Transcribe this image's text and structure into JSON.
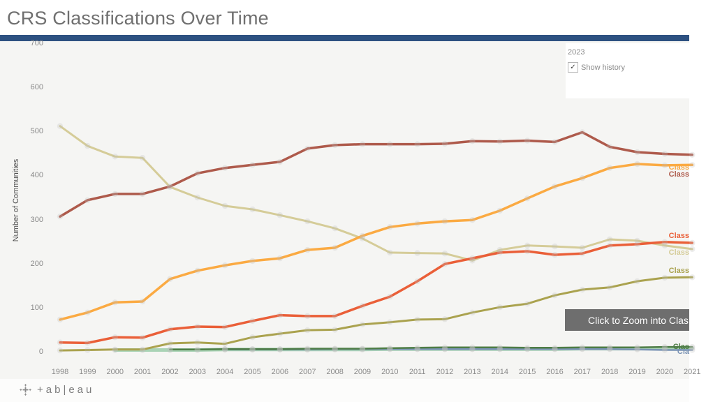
{
  "header": {
    "title": "CRS Classifications Over Time"
  },
  "filter_panel": {
    "year_value": "2023",
    "checkbox_checked": true,
    "checkbox_label": "Show history"
  },
  "zoom_button": {
    "label": "Click to Zoom into Clas"
  },
  "footer": {
    "wordmark": "+ab|eau"
  },
  "colors": {
    "divider_blue": "#2d5181",
    "chart_bg": "#f5f5f3",
    "button_gray": "#6e6e6e",
    "title_gray": "#6f6f6f"
  },
  "chart_data": {
    "type": "line",
    "title": "CRS Classifications Over Time",
    "xlabel": "",
    "ylabel": "Number of Communities",
    "x": [
      1998,
      1999,
      2000,
      2001,
      2002,
      2003,
      2004,
      2005,
      2006,
      2007,
      2008,
      2009,
      2010,
      2011,
      2012,
      2013,
      2014,
      2015,
      2016,
      2017,
      2018,
      2019,
      2020,
      2021
    ],
    "y_ticks": [
      0,
      100,
      200,
      300,
      400,
      500,
      600,
      700
    ],
    "ylim": [
      0,
      700
    ],
    "grid": false,
    "legend_position": "right-edge-labels",
    "series": [
      {
        "id": "teal-light",
        "name": "(unlabeled pale teal class)",
        "end_label": "",
        "label_top": null,
        "color": "#a9d3b5",
        "width": 5,
        "values": [
          null,
          null,
          4,
          4,
          4,
          4,
          5,
          5,
          5,
          5,
          5,
          5,
          6,
          6,
          6,
          6,
          6,
          6,
          6,
          7,
          7,
          7,
          8,
          8
        ]
      },
      {
        "id": "khaki",
        "name": "Class (khaki)",
        "end_label": "Class",
        "label_top": 297,
        "color": "#d5cc98",
        "width": 3,
        "values": [
          512,
          467,
          443,
          440,
          374,
          350,
          331,
          323,
          310,
          296,
          280,
          257,
          225,
          224,
          223,
          207,
          231,
          241,
          239,
          236,
          255,
          252,
          241,
          233
        ]
      },
      {
        "id": "dark-red",
        "name": "Class (dark red)",
        "end_label": "Class",
        "label_top": 185,
        "color": "#ae5a4b",
        "width": 3.5,
        "values": [
          307,
          344,
          358,
          358,
          375,
          405,
          417,
          424,
          431,
          461,
          469,
          471,
          471,
          471,
          472,
          478,
          477,
          479,
          476,
          498,
          465,
          453,
          449,
          447
        ]
      },
      {
        "id": "orange",
        "name": "Class (orange)",
        "end_label": "Class",
        "label_top": 175,
        "color": "#fbaa42",
        "width": 3.5,
        "values": [
          73,
          89,
          112,
          114,
          165,
          184,
          196,
          206,
          212,
          231,
          236,
          263,
          283,
          291,
          296,
          299,
          320,
          348,
          375,
          394,
          417,
          426,
          423,
          424
        ]
      },
      {
        "id": "olive",
        "name": "Class (olive)",
        "end_label": "Class",
        "label_top": 323,
        "color": "#aaa24e",
        "width": 3,
        "values": [
          3,
          4,
          5,
          5,
          19,
          21,
          18,
          33,
          41,
          49,
          50,
          62,
          67,
          73,
          74,
          89,
          101,
          109,
          128,
          141,
          146,
          160,
          168,
          169
        ]
      },
      {
        "id": "red-orange",
        "name": "Class (red-orange)",
        "end_label": "Class",
        "label_top": 273,
        "color": "#ea5f38",
        "width": 3.5,
        "values": [
          21,
          20,
          33,
          32,
          51,
          57,
          56,
          70,
          83,
          81,
          81,
          104,
          125,
          160,
          199,
          212,
          225,
          228,
          220,
          223,
          241,
          244,
          249,
          247
        ]
      },
      {
        "id": "steel-blue",
        "name": "Cla (steel blue)",
        "end_label": "Cla",
        "label_top": 439,
        "color": "#7a93b4",
        "width": 2.5,
        "values": [
          null,
          null,
          null,
          null,
          null,
          null,
          5,
          5,
          5,
          5,
          6,
          6,
          6,
          6,
          6,
          6,
          6,
          6,
          6,
          6,
          6,
          5,
          4,
          4
        ]
      },
      {
        "id": "green",
        "name": "Clas (green)",
        "end_label": "Clas",
        "label_top": 432,
        "color": "#4e7d46",
        "width": 2.5,
        "values": [
          null,
          null,
          null,
          null,
          5,
          5,
          6,
          6,
          6,
          7,
          7,
          7,
          8,
          9,
          10,
          10,
          10,
          9,
          9,
          10,
          10,
          10,
          11,
          11
        ]
      }
    ]
  }
}
